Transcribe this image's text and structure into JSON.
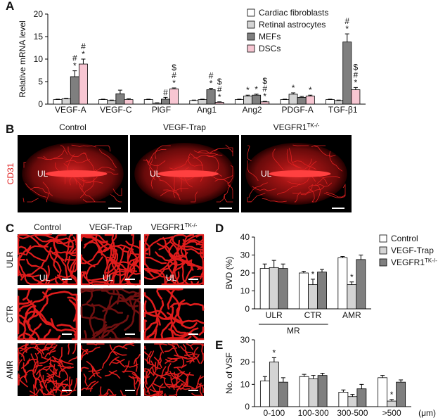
{
  "chart_data": [
    {
      "type": "bar",
      "panel": "A",
      "ylabel": "Relative mRNA level",
      "categories": [
        "VEGF-A",
        "VEGF-C",
        "PlGF",
        "Ang1",
        "Ang2",
        "PDGF-A",
        "TGF-β1"
      ],
      "ylim": [
        0,
        20
      ],
      "yticks": [
        0,
        5,
        10,
        15,
        20
      ],
      "series": [
        {
          "name": "Cardiac fibroblasts",
          "color": "#ffffff",
          "values": [
            1.0,
            1.0,
            1.0,
            0.8,
            1.0,
            1.0,
            1.0
          ],
          "errors": [
            0.1,
            0.1,
            0.1,
            0.1,
            0.1,
            0.1,
            0.1
          ],
          "markers": [
            null,
            null,
            null,
            null,
            null,
            null,
            null
          ]
        },
        {
          "name": "Retinal astrocytes",
          "color": "#d4d4d4",
          "values": [
            1.2,
            0.8,
            0.2,
            1.0,
            1.8,
            2.2,
            0.8
          ],
          "errors": [
            0.1,
            0.1,
            0.1,
            0.1,
            0.2,
            0.3,
            0.1
          ],
          "markers": [
            null,
            null,
            null,
            null,
            [
              "*"
            ],
            [
              "*"
            ],
            null
          ]
        },
        {
          "name": "MEFs",
          "color": "#7f7f7f",
          "values": [
            6.1,
            2.3,
            1.1,
            3.2,
            2.0,
            1.5,
            13.8
          ],
          "errors": [
            1.3,
            0.8,
            0.4,
            0.3,
            0.2,
            0.2,
            1.8
          ],
          "markers": [
            [
              "#",
              "*"
            ],
            null,
            [
              "#"
            ],
            [
              "#",
              "*"
            ],
            [
              "*"
            ],
            null,
            [
              "#",
              "*"
            ]
          ]
        },
        {
          "name": "DSCs",
          "color": "#f7c6d2",
          "values": [
            8.9,
            1.0,
            3.4,
            0.4,
            0.5,
            1.8,
            3.2
          ],
          "errors": [
            1.1,
            0.2,
            0.2,
            0.1,
            0.1,
            0.2,
            0.5
          ],
          "markers": [
            [
              "#",
              "*"
            ],
            null,
            [
              "$",
              "#",
              "*"
            ],
            [
              "$",
              "#",
              "*"
            ],
            [
              "$",
              "#",
              "*"
            ],
            [
              "*"
            ],
            [
              "$",
              "#",
              "*"
            ]
          ]
        }
      ]
    },
    {
      "type": "bar",
      "panel": "D",
      "ylabel": "BVD (%)",
      "group_label": "MR",
      "categories": [
        "ULR",
        "CTR",
        "AMR"
      ],
      "ylim": [
        0,
        40
      ],
      "yticks": [
        0,
        10,
        20,
        30,
        40
      ],
      "series": [
        {
          "name": "Control",
          "color": "#ffffff",
          "values": [
            22.5,
            20,
            28.5
          ],
          "errors": [
            2.5,
            1,
            0.7
          ],
          "markers": [
            null,
            null,
            null
          ]
        },
        {
          "name": "VEGF-Trap",
          "color": "#d4d4d4",
          "values": [
            23,
            13.5,
            13.5
          ],
          "errors": [
            4,
            3,
            1.5
          ],
          "markers": [
            null,
            [
              "*"
            ],
            [
              "*"
            ]
          ]
        },
        {
          "name": "VEGFR1",
          "name_sup": "TK-/-",
          "color": "#7f7f7f",
          "values": [
            22.5,
            20.5,
            27.5
          ],
          "errors": [
            2.5,
            1.5,
            2.5
          ],
          "markers": [
            null,
            null,
            null
          ]
        }
      ]
    },
    {
      "type": "bar",
      "panel": "E",
      "ylabel": "No. of VSF",
      "xunit": "(μm)",
      "categories": [
        "0-100",
        "100-300",
        "300-500",
        ">500"
      ],
      "ylim": [
        0,
        30
      ],
      "yticks": [
        0,
        10,
        20,
        30
      ],
      "series": [
        {
          "name": "Control",
          "color": "#ffffff",
          "values": [
            11.5,
            13.5,
            6.5,
            13
          ],
          "errors": [
            2,
            1,
            1,
            1
          ],
          "markers": [
            null,
            null,
            null,
            null
          ]
        },
        {
          "name": "VEGF-Trap",
          "color": "#d4d4d4",
          "values": [
            20,
            12.5,
            4.5,
            2.5
          ],
          "errors": [
            2,
            1.5,
            1,
            0.7
          ],
          "markers": [
            [
              "*"
            ],
            null,
            null,
            [
              "*"
            ]
          ]
        },
        {
          "name": "VEGFR1",
          "name_sup": "TK-/-",
          "color": "#7f7f7f",
          "values": [
            11,
            14,
            8,
            11
          ],
          "errors": [
            2,
            1,
            2,
            1
          ],
          "markers": [
            null,
            null,
            null,
            null
          ]
        }
      ]
    }
  ],
  "image_panels": {
    "B": {
      "letter": "B",
      "columns": [
        "Control",
        "VEGF-Trap",
        {
          "text": "VEGFR1",
          "sup": "TK-/-"
        }
      ],
      "stain": "CD31",
      "region": "UL"
    },
    "C": {
      "letter": "C",
      "columns": [
        "Control",
        "VEGF-Trap",
        {
          "text": "VEGFR1",
          "sup": "TK-/-"
        }
      ],
      "rows": [
        "ULR",
        "CTR",
        "AMR"
      ],
      "region": "UL"
    }
  }
}
